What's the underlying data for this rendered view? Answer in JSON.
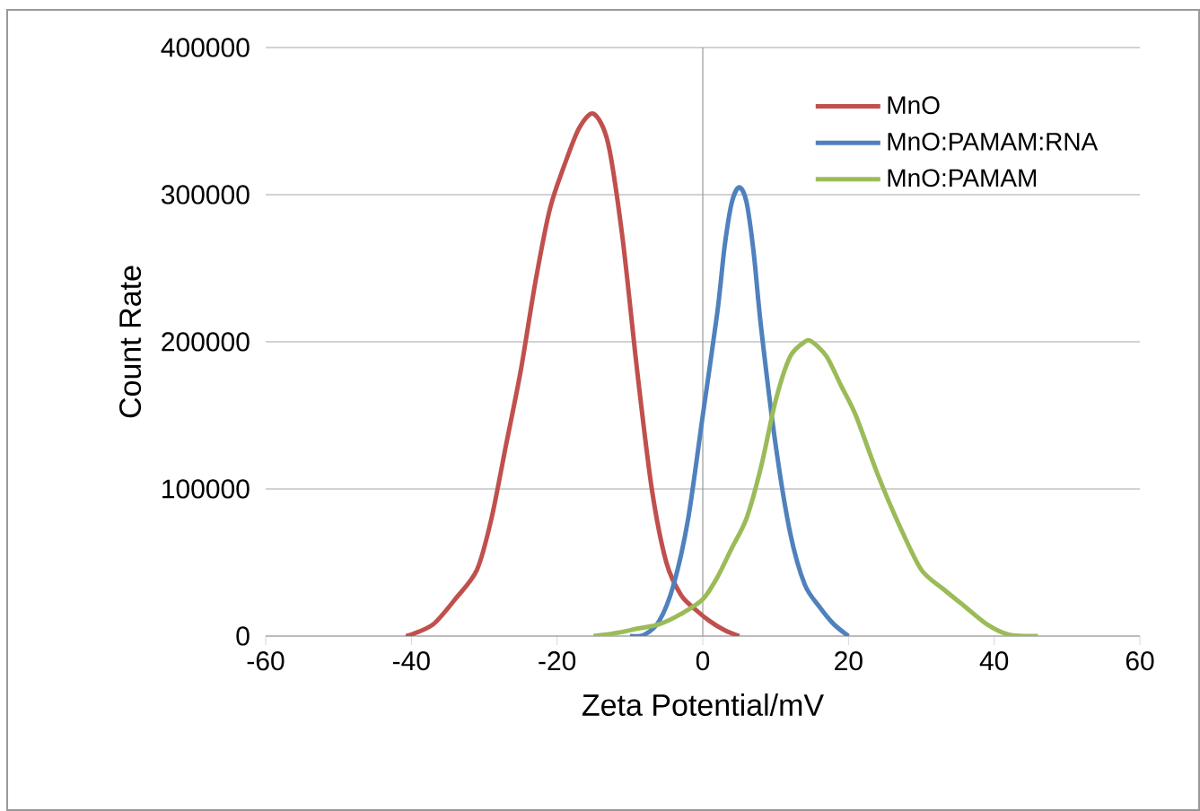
{
  "chart_data": {
    "type": "line",
    "xlabel": "Zeta Potential/mV",
    "ylabel": "Count Rate",
    "xlim": [
      -60,
      60
    ],
    "xticks": [
      -60,
      -40,
      -20,
      0,
      20,
      40,
      60
    ],
    "ylim": [
      0,
      400000
    ],
    "yticks": [
      0,
      100000,
      200000,
      300000,
      400000
    ],
    "grid": "y",
    "legend": "top right",
    "marker": "none",
    "line_style": "solid",
    "series": [
      {
        "name": "MnO",
        "color": "#c0504d",
        "x": [
          -40.8,
          -40,
          -37,
          -34,
          -31,
          -29,
          -27,
          -25,
          -23,
          -21,
          -19,
          -17,
          -15,
          -13,
          -11,
          -9,
          -7,
          -5,
          -3,
          -1,
          1,
          3,
          5
        ],
        "values": [
          0,
          1000,
          8000,
          25000,
          45000,
          80000,
          130000,
          180000,
          240000,
          290000,
          320000,
          345000,
          355000,
          335000,
          270000,
          180000,
          100000,
          50000,
          28000,
          18000,
          10000,
          4000,
          0
        ]
      },
      {
        "name": "MnO:PAMAM:RNA",
        "color": "#4f81bd",
        "x": [
          -10,
          -8,
          -6,
          -4,
          -2,
          0,
          2,
          3,
          4,
          5,
          6,
          7,
          8,
          10,
          12,
          14,
          16,
          18,
          20
        ],
        "values": [
          0,
          1000,
          10000,
          35000,
          80000,
          150000,
          220000,
          265000,
          295000,
          305000,
          295000,
          260000,
          210000,
          130000,
          70000,
          35000,
          20000,
          8000,
          0
        ]
      },
      {
        "name": "MnO:PAMAM",
        "color": "#9bbb59",
        "x": [
          -15,
          -12,
          -9,
          -6,
          -3,
          0,
          2,
          4,
          6,
          8,
          10,
          12,
          14,
          15,
          17,
          19,
          21,
          24,
          27,
          30,
          33,
          36,
          39,
          42,
          46
        ],
        "values": [
          0,
          2000,
          5000,
          8000,
          15000,
          25000,
          40000,
          60000,
          80000,
          115000,
          160000,
          190000,
          200000,
          200000,
          190000,
          170000,
          150000,
          110000,
          75000,
          45000,
          32000,
          20000,
          8000,
          1000,
          0
        ]
      }
    ]
  }
}
